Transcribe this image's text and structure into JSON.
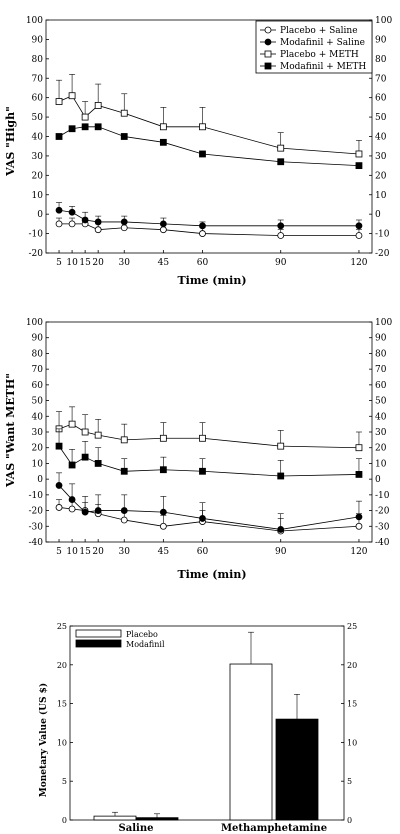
{
  "chart_data": [
    {
      "type": "line",
      "title": "",
      "xlabel": "Time (min)",
      "ylabel": "VAS \"High\"",
      "x": [
        5,
        10,
        15,
        20,
        30,
        45,
        60,
        90,
        120
      ],
      "xticks": [
        5,
        10,
        15,
        20,
        30,
        45,
        60,
        90,
        120
      ],
      "ylim": [
        -20,
        100
      ],
      "yticks": [
        -20,
        -10,
        0,
        10,
        20,
        30,
        40,
        50,
        60,
        70,
        80,
        90,
        100
      ],
      "legend_position": "top-right",
      "series": [
        {
          "name": "Placebo + Saline",
          "marker": "circle-open",
          "values": [
            -5,
            -5,
            -5,
            -8,
            -7,
            -8,
            -10,
            -11,
            -11
          ],
          "error": [
            3,
            3,
            3,
            3,
            3,
            3,
            3,
            3,
            3
          ]
        },
        {
          "name": "Modafinil + Saline",
          "marker": "circle-filled",
          "values": [
            2,
            1,
            -3,
            -4,
            -4,
            -5,
            -6,
            -6,
            -6
          ],
          "error": [
            4,
            3,
            4,
            3,
            3,
            3,
            2,
            3,
            3
          ]
        },
        {
          "name": "Placebo + METH",
          "marker": "square-open",
          "values": [
            58,
            61,
            50,
            56,
            52,
            45,
            45,
            34,
            31
          ],
          "error": [
            11,
            11,
            8,
            11,
            10,
            10,
            10,
            8,
            7
          ]
        },
        {
          "name": "Modafinil + METH",
          "marker": "square-filled",
          "values": [
            40,
            44,
            45,
            45,
            40,
            37,
            31,
            27,
            25
          ],
          "error": [
            0,
            0,
            0,
            0,
            0,
            0,
            0,
            0,
            0
          ]
        }
      ]
    },
    {
      "type": "line",
      "title": "",
      "xlabel": "Time (min)",
      "ylabel": "VAS \"Want METH\"",
      "x": [
        5,
        10,
        15,
        20,
        30,
        45,
        60,
        90,
        120
      ],
      "xticks": [
        5,
        10,
        15,
        20,
        30,
        45,
        60,
        90,
        120
      ],
      "ylim": [
        -40,
        100
      ],
      "yticks": [
        -40,
        -30,
        -20,
        -10,
        0,
        10,
        20,
        30,
        40,
        50,
        60,
        70,
        80,
        90,
        100
      ],
      "series": [
        {
          "name": "Placebo + Saline",
          "marker": "circle-open",
          "values": [
            -18,
            -19,
            -20,
            -22,
            -26,
            -30,
            -27,
            -33,
            -30
          ],
          "error": [
            5,
            5,
            5,
            6,
            6,
            7,
            7,
            8,
            8
          ]
        },
        {
          "name": "Modafinil + Saline",
          "marker": "circle-filled",
          "values": [
            -4,
            -13,
            -21,
            -20,
            -20,
            -21,
            -25,
            -32,
            -24
          ],
          "error": [
            8,
            10,
            10,
            10,
            10,
            10,
            10,
            10,
            10
          ]
        },
        {
          "name": "Placebo + METH",
          "marker": "square-open",
          "values": [
            32,
            35,
            30,
            28,
            25,
            26,
            26,
            21,
            20
          ],
          "error": [
            11,
            11,
            11,
            10,
            10,
            10,
            10,
            10,
            10
          ]
        },
        {
          "name": "Modafinil + METH",
          "marker": "square-filled",
          "values": [
            21,
            9,
            14,
            10,
            5,
            6,
            5,
            2,
            3
          ],
          "error": [
            11,
            10,
            10,
            10,
            8,
            8,
            8,
            10,
            10
          ]
        }
      ]
    },
    {
      "type": "bar",
      "title": "",
      "xlabel": "",
      "ylabel": "Monetary Value (US $)",
      "categories": [
        "Saline",
        "Methamphetamine"
      ],
      "ylim": [
        0,
        25
      ],
      "yticks": [
        0,
        5,
        10,
        15,
        20,
        25
      ],
      "legend_position": "top-left",
      "series": [
        {
          "name": "Placebo",
          "color": "#ffffff",
          "values": [
            0.5,
            20.1
          ],
          "error": [
            0.5,
            4.1
          ]
        },
        {
          "name": "Modafinil",
          "color": "#000000",
          "values": [
            0.3,
            13.0
          ],
          "error": [
            0.5,
            3.2
          ]
        }
      ]
    }
  ]
}
